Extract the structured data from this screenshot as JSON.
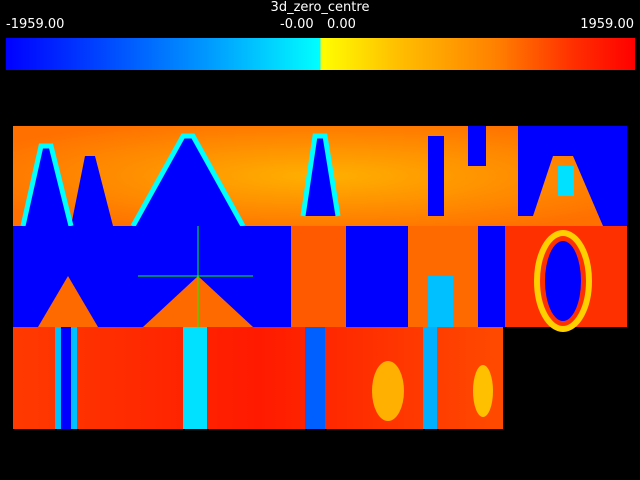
{
  "title": "3d_zero_centre",
  "colorbar": {
    "min_label": "-1959.00",
    "neg_zero_label": "-0.00",
    "zero_label": "0.00",
    "max_label": "1959.00",
    "range": [
      -1959.0,
      1959.0
    ],
    "low_colors": [
      "#0000ff",
      "#00ffff"
    ],
    "high_colors": [
      "#ffff00",
      "#ff0000"
    ]
  },
  "chart_data": {
    "type": "heatmap",
    "title": "3d_zero_centre",
    "xlabel": "",
    "ylabel": "",
    "value_range": [
      -1959.0,
      1959.0
    ],
    "colormap": "blue-cyan (negative) | yellow-red (positive), split at zero",
    "grid": false,
    "legend": "colorbar-top",
    "tiles": [
      {
        "row": 0,
        "col": 0,
        "pattern": "blue V-shapes on orange"
      },
      {
        "row": 0,
        "col": 1,
        "pattern": "blue peaks on orange"
      },
      {
        "row": 0,
        "col": 2,
        "pattern": "blue column with orange lobes"
      },
      {
        "row": 0,
        "col": 3,
        "pattern": "narrow blue bands on orange"
      },
      {
        "row": 0,
        "col": 4,
        "pattern": "blue ring pattern"
      },
      {
        "row": 1,
        "col": 0,
        "pattern": "blue lobes with orange center"
      },
      {
        "row": 1,
        "col": 1,
        "pattern": "blue lobes with orange center"
      },
      {
        "row": 1,
        "col": 2,
        "pattern": "orange column between blue"
      },
      {
        "row": 1,
        "col": 3,
        "pattern": "orange arches with blue center"
      },
      {
        "row": 1,
        "col": 4,
        "pattern": "red field with blue oval"
      },
      {
        "row": 2,
        "col": 0,
        "pattern": "red with cyan/blue stripes"
      },
      {
        "row": 2,
        "col": 1,
        "pattern": "red with cyan stripe"
      },
      {
        "row": 2,
        "col": 2,
        "pattern": "red with blue stripe"
      },
      {
        "row": 2,
        "col": 3,
        "pattern": "red with orange rings and cyan stripe"
      }
    ]
  }
}
